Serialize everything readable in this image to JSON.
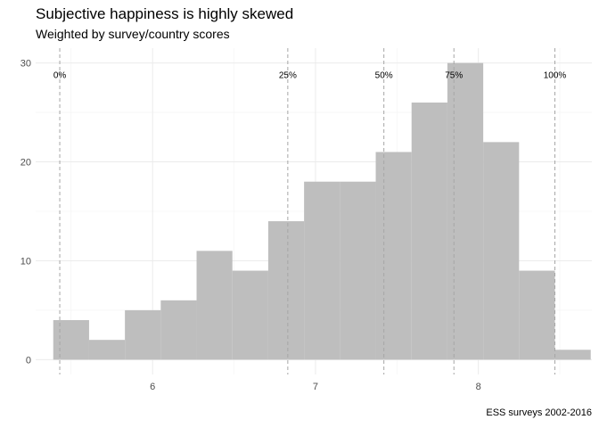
{
  "chart_data": {
    "type": "bar",
    "title": "Subjective happiness is highly skewed",
    "subtitle": "Weighted by survey/country scores",
    "caption": "ESS surveys 2002-2016",
    "xlabel": "",
    "ylabel": "",
    "xlim": [
      5.282,
      8.697
    ],
    "ylim": [
      -1.5,
      31.5
    ],
    "x_ticks": [
      6,
      7,
      8
    ],
    "y_ticks": [
      0,
      10,
      20,
      30
    ],
    "grid": true,
    "bar_color": "#bebebe",
    "bins": [
      {
        "x0": 5.39,
        "x1": 5.61,
        "count": 4
      },
      {
        "x0": 5.61,
        "x1": 5.83,
        "count": 2
      },
      {
        "x0": 5.83,
        "x1": 6.05,
        "count": 5
      },
      {
        "x0": 6.05,
        "x1": 6.27,
        "count": 6
      },
      {
        "x0": 6.27,
        "x1": 6.49,
        "count": 11
      },
      {
        "x0": 6.49,
        "x1": 6.71,
        "count": 9
      },
      {
        "x0": 6.71,
        "x1": 6.93,
        "count": 14
      },
      {
        "x0": 6.93,
        "x1": 7.15,
        "count": 18
      },
      {
        "x0": 7.15,
        "x1": 7.37,
        "count": 18
      },
      {
        "x0": 7.37,
        "x1": 7.59,
        "count": 21
      },
      {
        "x0": 7.59,
        "x1": 7.81,
        "count": 26
      },
      {
        "x0": 7.81,
        "x1": 8.03,
        "count": 30
      },
      {
        "x0": 8.03,
        "x1": 8.25,
        "count": 22
      },
      {
        "x0": 8.25,
        "x1": 8.47,
        "count": 9
      },
      {
        "x0": 8.47,
        "x1": 8.69,
        "count": 1
      }
    ],
    "quantiles": [
      {
        "label": "0%",
        "x": 5.43
      },
      {
        "label": "25%",
        "x": 6.83
      },
      {
        "label": "50%",
        "x": 7.42
      },
      {
        "label": "75%",
        "x": 7.85
      },
      {
        "label": "100%",
        "x": 8.47
      }
    ]
  }
}
